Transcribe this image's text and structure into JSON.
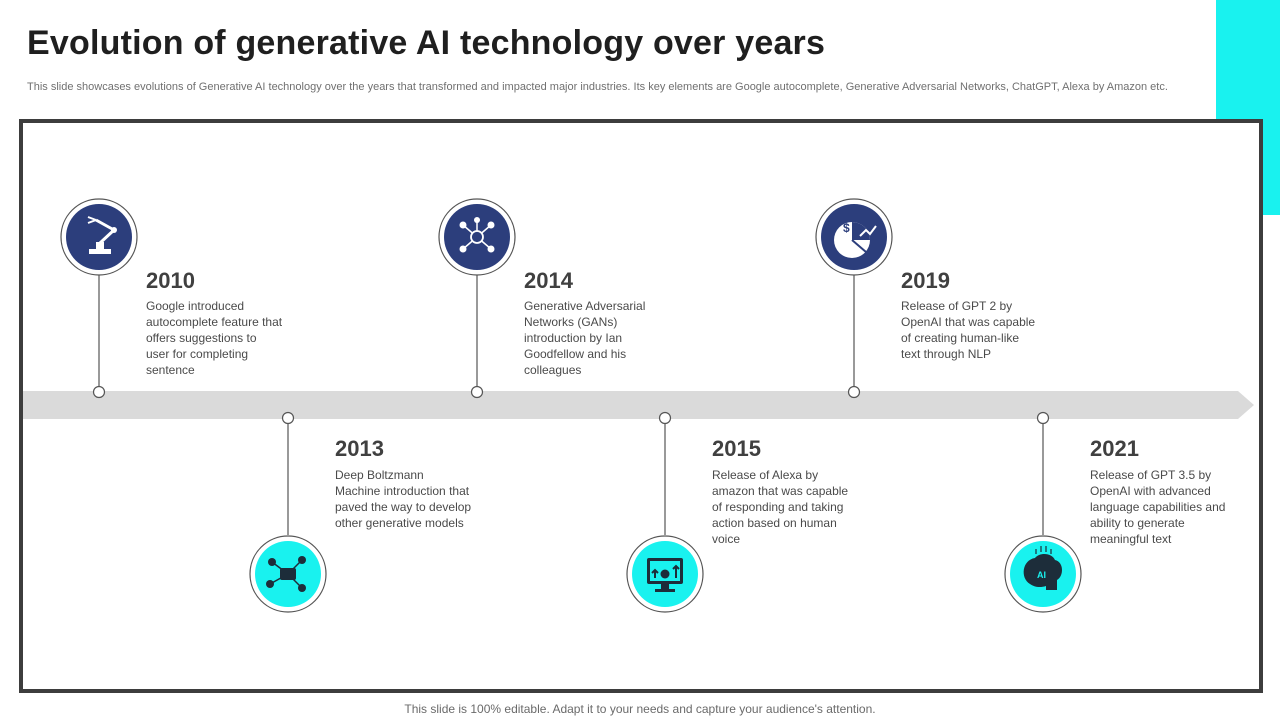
{
  "title": "Evolution of generative AI technology over years",
  "subtitle": "This slide showcases evolutions of Generative AI  technology over the years that transformed and impacted major industries. Its key elements are Google autocomplete, Generative Adversarial Networks, ChatGPT, Alexa by Amazon etc.",
  "footer": "This slide is 100% editable. Adapt it to your needs and capture your audience's attention.",
  "colors": {
    "navy": "#2c3e7c",
    "cyan": "#19f2ef",
    "arrow": "#dadada",
    "frame": "#3d3d3d"
  },
  "milestones": [
    {
      "year": "2010",
      "desc": "Google introduced\nautocomplete feature that\noffers  suggestions to\nuser for  completing\nsentence",
      "icon": "robot-arm-icon",
      "position": "top"
    },
    {
      "year": "2013",
      "desc": "Deep Boltzmann\nMachine introduction that\npaved  the way to develop\nother generative  models",
      "icon": "network-hub-icon",
      "position": "bottom"
    },
    {
      "year": "2014",
      "desc": "Generative  Adversarial\nNetworks (GANs)\nintroduction  by Ian\nGoodfellow  and his\ncolleagues",
      "icon": "user-network-icon",
      "position": "top"
    },
    {
      "year": "2015",
      "desc": "Release of Alexa by\namazon that was capable\nof responding  and taking\naction based on human\nvoice",
      "icon": "monitor-growth-icon",
      "position": "bottom"
    },
    {
      "year": "2019",
      "desc": "Release of GPT 2 by\nOpenAI that was capable\nof creating human-like\ntext through NLP",
      "icon": "pie-chart-dollar-icon",
      "position": "top"
    },
    {
      "year": "2021",
      "desc": "Release of GPT 3.5 by\nOpenAI with advanced\nlanguage capabilities and\nability to generate\nmeaningful  text",
      "icon": "ai-brain-icon",
      "position": "bottom"
    }
  ]
}
